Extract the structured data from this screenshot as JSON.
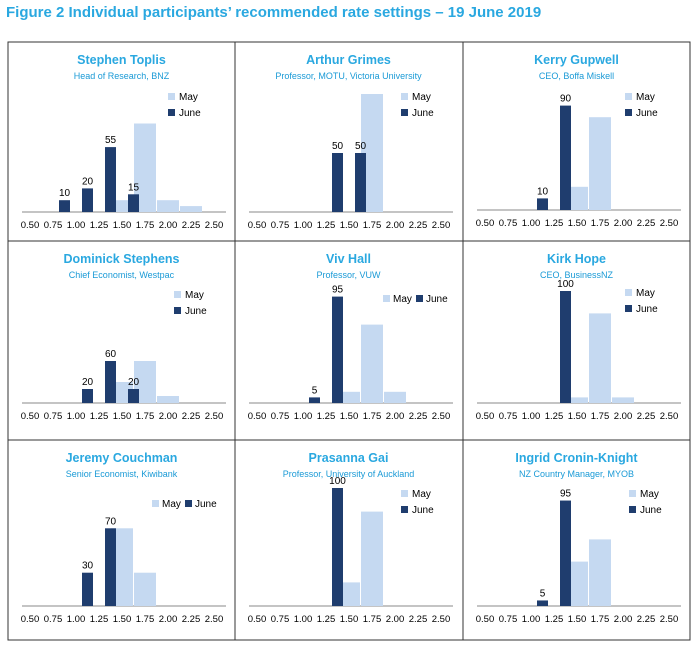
{
  "figure_title": "Figure 2 Individual participants’ recommended rate settings – 19 June 2019",
  "colors": {
    "may": "#c5d9f1",
    "june": "#1f3d6e",
    "title": "#2aa8e0",
    "subtitle": "#1a9ad6",
    "axis": "#888888",
    "label": "#000000"
  },
  "legend_labels": {
    "may": "May",
    "june": "June"
  },
  "chart_data": [
    {
      "type": "bar",
      "name": "Stephen Toplis",
      "subtitle": "Head of Research, BNZ",
      "categories": [
        "0.50",
        "0.75",
        "1.00",
        "1.25",
        "1.50",
        "1.75",
        "2.00",
        "2.25",
        "2.50"
      ],
      "series": [
        {
          "name": "May",
          "values": [
            0,
            0,
            0,
            0,
            10,
            75,
            10,
            5,
            0
          ]
        },
        {
          "name": "June",
          "values": [
            0,
            0,
            10,
            20,
            55,
            15,
            0,
            0,
            0
          ]
        }
      ],
      "data_labels": {
        "june": [
          null,
          null,
          "10",
          "20",
          "55",
          "15",
          null,
          null,
          null
        ]
      },
      "ylim": [
        0,
        100
      ]
    },
    {
      "type": "bar",
      "name": "Arthur Grimes",
      "subtitle": "Professor, MOTU, Victoria University",
      "categories": [
        "0.50",
        "0.75",
        "1.00",
        "1.25",
        "1.50",
        "1.75",
        "2.00",
        "2.25",
        "2.50"
      ],
      "series": [
        {
          "name": "May",
          "values": [
            0,
            0,
            0,
            0,
            0,
            100,
            0,
            0,
            0
          ]
        },
        {
          "name": "June",
          "values": [
            0,
            0,
            0,
            0,
            50,
            50,
            0,
            0,
            0
          ]
        }
      ],
      "data_labels": {
        "june": [
          null,
          null,
          null,
          null,
          "50",
          "50",
          null,
          null,
          null
        ]
      },
      "ylim": [
        0,
        100
      ]
    },
    {
      "type": "bar",
      "name": "Kerry Gupwell",
      "subtitle": "CEO, Boffa Miskell",
      "categories": [
        "0.50",
        "0.75",
        "1.00",
        "1.25",
        "1.50",
        "1.75",
        "2.00",
        "2.25",
        "2.50"
      ],
      "series": [
        {
          "name": "May",
          "values": [
            0,
            0,
            0,
            0,
            20,
            80,
            0,
            0,
            0
          ]
        },
        {
          "name": "June",
          "values": [
            0,
            0,
            0,
            10,
            90,
            0,
            0,
            0,
            0
          ]
        }
      ],
      "data_labels": {
        "june": [
          null,
          null,
          null,
          "10",
          "90",
          null,
          null,
          null,
          null
        ]
      },
      "ylim": [
        0,
        100
      ]
    },
    {
      "type": "bar",
      "name": "Dominick Stephens",
      "subtitle": "Chief Economist, Westpac",
      "categories": [
        "0.50",
        "0.75",
        "1.00",
        "1.25",
        "1.50",
        "1.75",
        "2.00",
        "2.25",
        "2.50"
      ],
      "series": [
        {
          "name": "May",
          "values": [
            0,
            0,
            0,
            0,
            30,
            60,
            10,
            0,
            0
          ]
        },
        {
          "name": "June",
          "values": [
            0,
            0,
            0,
            20,
            60,
            20,
            0,
            0,
            0
          ]
        }
      ],
      "data_labels": {
        "june": [
          null,
          null,
          null,
          "20",
          "60",
          "20",
          null,
          null,
          null
        ]
      },
      "ylim": [
        0,
        100
      ]
    },
    {
      "type": "bar",
      "name": "Viv Hall",
      "subtitle": "Professor, VUW",
      "categories": [
        "0.50",
        "0.75",
        "1.00",
        "1.25",
        "1.50",
        "1.75",
        "2.00",
        "2.25",
        "2.50"
      ],
      "series": [
        {
          "name": "May",
          "values": [
            0,
            0,
            0,
            0,
            10,
            70,
            10,
            0,
            0
          ]
        },
        {
          "name": "June",
          "values": [
            0,
            0,
            0,
            5,
            95,
            0,
            0,
            0,
            0
          ]
        }
      ],
      "data_labels": {
        "june": [
          null,
          null,
          null,
          "5",
          "95",
          null,
          null,
          null,
          null
        ]
      },
      "ylim": [
        0,
        100
      ]
    },
    {
      "type": "bar",
      "name": "Kirk Hope",
      "subtitle": "CEO, BusinessNZ",
      "categories": [
        "0.50",
        "0.75",
        "1.00",
        "1.25",
        "1.50",
        "1.75",
        "2.00",
        "2.25",
        "2.50"
      ],
      "series": [
        {
          "name": "May",
          "values": [
            0,
            0,
            0,
            0,
            5,
            80,
            5,
            0,
            0
          ]
        },
        {
          "name": "June",
          "values": [
            0,
            0,
            0,
            0,
            100,
            0,
            0,
            0,
            0
          ]
        }
      ],
      "data_labels": {
        "june": [
          null,
          null,
          null,
          null,
          "100",
          null,
          null,
          null,
          null
        ]
      },
      "ylim": [
        0,
        100
      ]
    },
    {
      "type": "bar",
      "name": "Jeremy Couchman",
      "subtitle": "Senior Economist, Kiwibank",
      "categories": [
        "0.50",
        "0.75",
        "1.00",
        "1.25",
        "1.50",
        "1.75",
        "2.00",
        "2.25",
        "2.50"
      ],
      "series": [
        {
          "name": "May",
          "values": [
            0,
            0,
            0,
            0,
            70,
            30,
            0,
            0,
            0
          ]
        },
        {
          "name": "June",
          "values": [
            0,
            0,
            0,
            30,
            70,
            0,
            0,
            0,
            0
          ]
        }
      ],
      "data_labels": {
        "june": [
          null,
          null,
          null,
          "30",
          "70",
          null,
          null,
          null,
          null
        ]
      },
      "ylim": [
        0,
        100
      ]
    },
    {
      "type": "bar",
      "name": "Prasanna Gai",
      "subtitle": "Professor, University of Auckland",
      "categories": [
        "0.50",
        "0.75",
        "1.00",
        "1.25",
        "1.50",
        "1.75",
        "2.00",
        "2.25",
        "2.50"
      ],
      "series": [
        {
          "name": "May",
          "values": [
            0,
            0,
            0,
            0,
            20,
            80,
            0,
            0,
            0
          ]
        },
        {
          "name": "June",
          "values": [
            0,
            0,
            0,
            0,
            100,
            0,
            0,
            0,
            0
          ]
        }
      ],
      "data_labels": {
        "june": [
          null,
          null,
          null,
          null,
          "100",
          null,
          null,
          null,
          null
        ]
      },
      "ylim": [
        0,
        100
      ]
    },
    {
      "type": "bar",
      "name": "Ingrid Cronin-Knight",
      "subtitle": "NZ Country Manager, MYOB",
      "categories": [
        "0.50",
        "0.75",
        "1.00",
        "1.25",
        "1.50",
        "1.75",
        "2.00",
        "2.25",
        "2.50"
      ],
      "series": [
        {
          "name": "May",
          "values": [
            0,
            0,
            0,
            0,
            40,
            60,
            0,
            0,
            0
          ]
        },
        {
          "name": "June",
          "values": [
            0,
            0,
            0,
            5,
            95,
            0,
            0,
            0,
            0
          ]
        }
      ],
      "data_labels": {
        "june": [
          null,
          null,
          null,
          "5",
          "95",
          null,
          null,
          null,
          null
        ]
      },
      "ylim": [
        0,
        100
      ]
    }
  ]
}
